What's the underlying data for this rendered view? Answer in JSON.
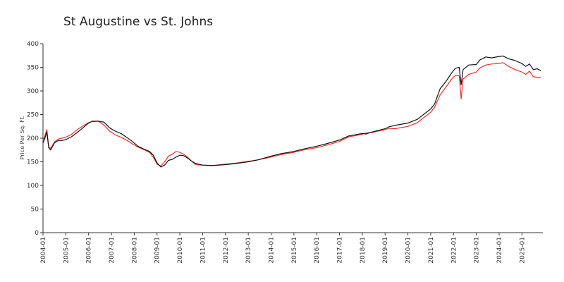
{
  "chart_data": {
    "type": "line",
    "title": "St Augustine vs St. Johns",
    "xlabel": "",
    "ylabel": "Price Per Sq. Ft.",
    "ylim": [
      0,
      400
    ],
    "xlim": [
      "2004-01",
      "2025-12"
    ],
    "grid": false,
    "y_ticks": [
      0,
      50,
      100,
      150,
      200,
      250,
      300,
      350,
      400
    ],
    "x_ticks": [
      "2004-01",
      "2005-01",
      "2006-01",
      "2007-01",
      "2008-01",
      "2009-01",
      "2010-01",
      "2011-01",
      "2012-01",
      "2013-01",
      "2014-01",
      "2015-01",
      "2016-01",
      "2017-01",
      "2018-01",
      "2019-01",
      "2020-01",
      "2021-01",
      "2022-01",
      "2023-01",
      "2024-01",
      "2025-01"
    ],
    "series": [
      {
        "color": "#111111",
        "points": [
          [
            "2004-01",
            190
          ],
          [
            "2004-02",
            200
          ],
          [
            "2004-03",
            213
          ],
          [
            "2004-04",
            180
          ],
          [
            "2004-05",
            175
          ],
          [
            "2004-07",
            190
          ],
          [
            "2004-09",
            195
          ],
          [
            "2004-11",
            195
          ],
          [
            "2005-01",
            197
          ],
          [
            "2005-04",
            203
          ],
          [
            "2005-07",
            212
          ],
          [
            "2005-10",
            222
          ],
          [
            "2006-01",
            232
          ],
          [
            "2006-03",
            236
          ],
          [
            "2006-06",
            236
          ],
          [
            "2006-09",
            234
          ],
          [
            "2006-12",
            222
          ],
          [
            "2007-03",
            215
          ],
          [
            "2007-06",
            210
          ],
          [
            "2007-09",
            202
          ],
          [
            "2007-12",
            193
          ],
          [
            "2008-03",
            183
          ],
          [
            "2008-06",
            177
          ],
          [
            "2008-09",
            172
          ],
          [
            "2008-11",
            164
          ],
          [
            "2009-01",
            148
          ],
          [
            "2009-03",
            139
          ],
          [
            "2009-05",
            143
          ],
          [
            "2009-07",
            153
          ],
          [
            "2009-09",
            155
          ],
          [
            "2009-11",
            160
          ],
          [
            "2010-01",
            164
          ],
          [
            "2010-03",
            163
          ],
          [
            "2010-05",
            158
          ],
          [
            "2010-07",
            152
          ],
          [
            "2010-09",
            147
          ],
          [
            "2010-11",
            145
          ],
          [
            "2011-01",
            143
          ],
          [
            "2011-06",
            142
          ],
          [
            "2012-01",
            144
          ],
          [
            "2012-06",
            146
          ],
          [
            "2013-01",
            150
          ],
          [
            "2013-06",
            154
          ],
          [
            "2014-01",
            162
          ],
          [
            "2014-06",
            167
          ],
          [
            "2015-01",
            172
          ],
          [
            "2015-06",
            177
          ],
          [
            "2016-01",
            183
          ],
          [
            "2016-06",
            188
          ],
          [
            "2017-01",
            196
          ],
          [
            "2017-06",
            205
          ],
          [
            "2018-01",
            210
          ],
          [
            "2018-03",
            209
          ],
          [
            "2018-06",
            213
          ],
          [
            "2019-01",
            220
          ],
          [
            "2019-03",
            224
          ],
          [
            "2019-06",
            227
          ],
          [
            "2020-01",
            232
          ],
          [
            "2020-06",
            240
          ],
          [
            "2021-01",
            262
          ],
          [
            "2021-03",
            272
          ],
          [
            "2021-06",
            305
          ],
          [
            "2021-09",
            320
          ],
          [
            "2021-12",
            338
          ],
          [
            "2022-02",
            348
          ],
          [
            "2022-04",
            350
          ],
          [
            "2022-05",
            313
          ],
          [
            "2022-06",
            345
          ],
          [
            "2022-09",
            355
          ],
          [
            "2023-01",
            356
          ],
          [
            "2023-03",
            366
          ],
          [
            "2023-06",
            372
          ],
          [
            "2023-09",
            370
          ],
          [
            "2024-01",
            373
          ],
          [
            "2024-03",
            374
          ],
          [
            "2024-06",
            368
          ],
          [
            "2024-09",
            365
          ],
          [
            "2025-01",
            358
          ],
          [
            "2025-03",
            352
          ],
          [
            "2025-05",
            357
          ],
          [
            "2025-07",
            345
          ],
          [
            "2025-09",
            347
          ],
          [
            "2025-11",
            343
          ]
        ]
      },
      {
        "color": "#e8302c",
        "points": [
          [
            "2004-01",
            195
          ],
          [
            "2004-02",
            205
          ],
          [
            "2004-03",
            218
          ],
          [
            "2004-04",
            182
          ],
          [
            "2004-05",
            178
          ],
          [
            "2004-07",
            192
          ],
          [
            "2004-09",
            198
          ],
          [
            "2004-11",
            200
          ],
          [
            "2005-01",
            202
          ],
          [
            "2005-04",
            208
          ],
          [
            "2005-07",
            218
          ],
          [
            "2005-10",
            226
          ],
          [
            "2006-01",
            233
          ],
          [
            "2006-03",
            235
          ],
          [
            "2006-06",
            236
          ],
          [
            "2006-09",
            228
          ],
          [
            "2006-12",
            215
          ],
          [
            "2007-03",
            207
          ],
          [
            "2007-06",
            202
          ],
          [
            "2007-09",
            196
          ],
          [
            "2007-12",
            188
          ],
          [
            "2008-03",
            181
          ],
          [
            "2008-06",
            176
          ],
          [
            "2008-09",
            170
          ],
          [
            "2008-11",
            160
          ],
          [
            "2009-01",
            145
          ],
          [
            "2009-03",
            141
          ],
          [
            "2009-05",
            150
          ],
          [
            "2009-07",
            162
          ],
          [
            "2009-09",
            166
          ],
          [
            "2009-11",
            172
          ],
          [
            "2010-01",
            170
          ],
          [
            "2010-03",
            166
          ],
          [
            "2010-05",
            160
          ],
          [
            "2010-07",
            152
          ],
          [
            "2010-09",
            145
          ],
          [
            "2010-11",
            143
          ],
          [
            "2011-01",
            143
          ],
          [
            "2011-06",
            142
          ],
          [
            "2012-01",
            145
          ],
          [
            "2012-06",
            147
          ],
          [
            "2013-01",
            151
          ],
          [
            "2013-06",
            154
          ],
          [
            "2014-01",
            160
          ],
          [
            "2014-06",
            165
          ],
          [
            "2015-01",
            170
          ],
          [
            "2015-06",
            175
          ],
          [
            "2016-01",
            180
          ],
          [
            "2016-06",
            185
          ],
          [
            "2017-01",
            193
          ],
          [
            "2017-06",
            203
          ],
          [
            "2018-01",
            208
          ],
          [
            "2018-03",
            211
          ],
          [
            "2018-06",
            212
          ],
          [
            "2019-01",
            218
          ],
          [
            "2019-03",
            221
          ],
          [
            "2019-06",
            220
          ],
          [
            "2020-01",
            225
          ],
          [
            "2020-06",
            233
          ],
          [
            "2021-01",
            255
          ],
          [
            "2021-03",
            265
          ],
          [
            "2021-06",
            292
          ],
          [
            "2021-09",
            308
          ],
          [
            "2021-12",
            325
          ],
          [
            "2022-02",
            333
          ],
          [
            "2022-04",
            332
          ],
          [
            "2022-05",
            283
          ],
          [
            "2022-06",
            325
          ],
          [
            "2022-09",
            335
          ],
          [
            "2023-01",
            340
          ],
          [
            "2023-03",
            349
          ],
          [
            "2023-06",
            355
          ],
          [
            "2023-09",
            357
          ],
          [
            "2024-01",
            358
          ],
          [
            "2024-03",
            360
          ],
          [
            "2024-06",
            352
          ],
          [
            "2024-09",
            346
          ],
          [
            "2025-01",
            340
          ],
          [
            "2025-03",
            335
          ],
          [
            "2025-05",
            342
          ],
          [
            "2025-07",
            330
          ],
          [
            "2025-09",
            329
          ],
          [
            "2025-11",
            328
          ]
        ]
      }
    ]
  }
}
